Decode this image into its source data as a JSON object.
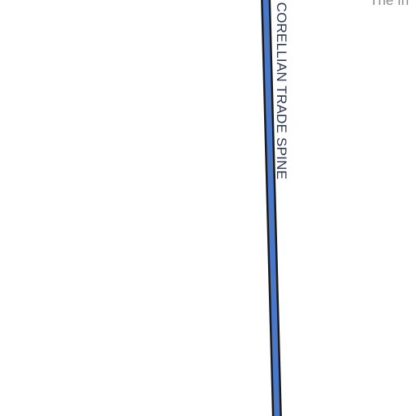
{
  "map": {
    "route": {
      "name": "CORELLIAN TRADE SPINE",
      "fill_color": "#4a78c8",
      "outline_color": "#1a1a1a",
      "label_color": "#2a3550"
    },
    "corner_text": "The In"
  }
}
